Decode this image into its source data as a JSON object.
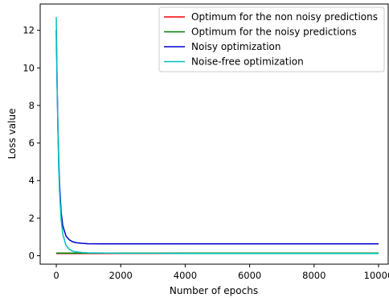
{
  "chart_data": {
    "type": "line",
    "xlabel": "Number of epochs",
    "ylabel": "Loss value",
    "xlim": [
      -500,
      10300
    ],
    "ylim": [
      -0.45,
      13.4
    ],
    "xticks": [
      0,
      2000,
      4000,
      6000,
      8000,
      10000
    ],
    "xtick_labels": [
      "0",
      "2000",
      "4000",
      "6000",
      "8000",
      "10000"
    ],
    "yticks": [
      0,
      2,
      4,
      6,
      8,
      10,
      12
    ],
    "ytick_labels": [
      "0",
      "2",
      "4",
      "6",
      "8",
      "10",
      "12"
    ],
    "legend_position": "top-right",
    "series": [
      {
        "name": "Optimum for the non noisy predictions",
        "color": "#ff0000",
        "x": [
          0,
          10000
        ],
        "y": [
          0.12,
          0.12
        ]
      },
      {
        "name": "Optimum for the noisy predictions",
        "color": "#008000",
        "x": [
          0,
          10000
        ],
        "y": [
          0.14,
          0.14
        ]
      },
      {
        "name": "Noisy optimization",
        "color": "#0000cd",
        "x": [
          0,
          10,
          25,
          50,
          75,
          100,
          150,
          200,
          300,
          400,
          500,
          600,
          800,
          1000,
          1500,
          2000,
          3000,
          4000,
          6000,
          8000,
          10000
        ],
        "y": [
          12.0,
          11.0,
          9.2,
          6.8,
          5.0,
          3.8,
          2.3,
          1.6,
          1.05,
          0.85,
          0.75,
          0.7,
          0.66,
          0.64,
          0.63,
          0.63,
          0.63,
          0.63,
          0.63,
          0.63,
          0.63
        ]
      },
      {
        "name": "Noise-free optimization",
        "color": "#00bfbf",
        "x": [
          0,
          10,
          25,
          50,
          75,
          100,
          150,
          200,
          300,
          400,
          500,
          600,
          800,
          1000,
          1500,
          2000,
          3000,
          4000,
          6000,
          8000,
          10000
        ],
        "y": [
          12.7,
          11.5,
          9.4,
          6.6,
          4.6,
          3.4,
          1.9,
          1.15,
          0.55,
          0.35,
          0.25,
          0.2,
          0.17,
          0.15,
          0.14,
          0.13,
          0.13,
          0.12,
          0.12,
          0.12,
          0.12
        ]
      }
    ]
  }
}
